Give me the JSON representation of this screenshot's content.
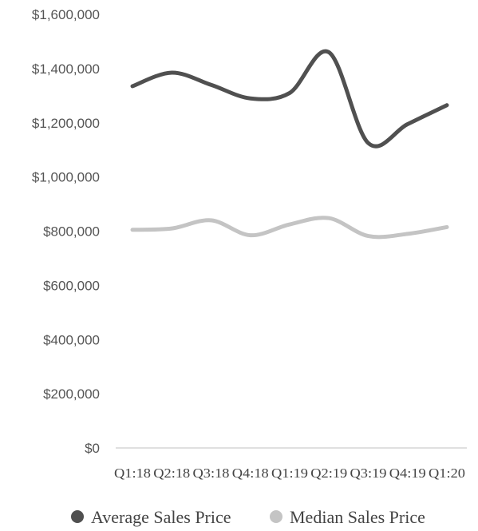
{
  "chart_data": {
    "type": "line",
    "categories": [
      "Q1:18",
      "Q2:18",
      "Q3:18",
      "Q4:18",
      "Q1:19",
      "Q2:19",
      "Q3:19",
      "Q4:19",
      "Q1:20"
    ],
    "series": [
      {
        "name": "Average Sales Price",
        "color": "#505050",
        "values": [
          1335000,
          1385000,
          1340000,
          1290000,
          1310000,
          1460000,
          1125000,
          1195000,
          1265000
        ]
      },
      {
        "name": "Median Sales Price",
        "color": "#c4c4c4",
        "values": [
          805000,
          810000,
          840000,
          785000,
          825000,
          848000,
          782000,
          790000,
          815000
        ]
      }
    ],
    "yticks": [
      "$1,600,000",
      "$1,400,000",
      "$1,200,000",
      "$1,000,000",
      "$800,000",
      "$600,000",
      "$400,000",
      "$200,000",
      "$0"
    ],
    "ylim": [
      0,
      1600000
    ],
    "grid": false,
    "legend_position": "bottom"
  }
}
